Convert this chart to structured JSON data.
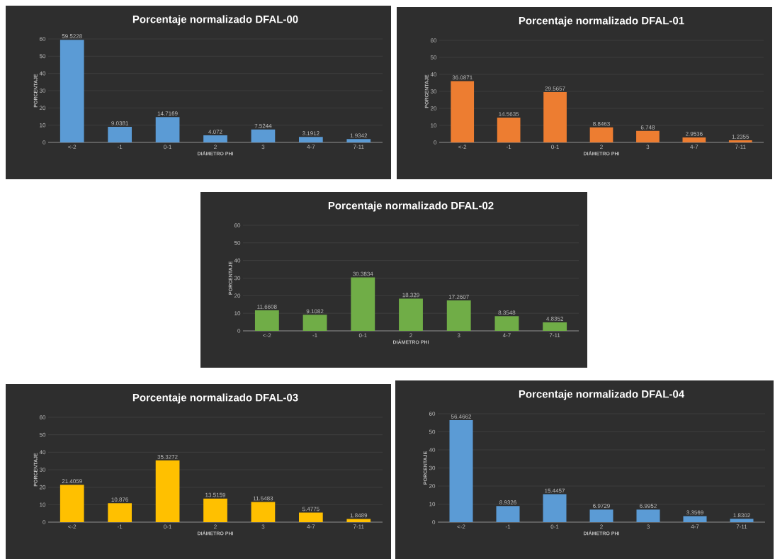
{
  "chart_data": [
    {
      "type": "bar",
      "title": "Porcentaje normalizado DFAL-00",
      "xlabel": "DIÁMETRO PHI",
      "ylabel": "PORCENTAJE",
      "categories": [
        "<-2",
        "-1",
        "0-1",
        "2",
        "3",
        "4-7",
        "7-11"
      ],
      "values": [
        59.5228,
        9.0381,
        14.7169,
        4.072,
        7.5244,
        3.1912,
        1.9342
      ],
      "color": "#5b9bd5",
      "ylim": [
        0,
        60
      ],
      "yticks": [
        0,
        10,
        20,
        30,
        40,
        50,
        60
      ],
      "grid": "y",
      "data_labels": true
    },
    {
      "type": "bar",
      "title": "Porcentaje normalizado DFAL-01",
      "xlabel": "DIÁMETRO PHI",
      "ylabel": "PORCENTAJE",
      "categories": [
        "<-2",
        "-1",
        "0-1",
        "2",
        "3",
        "4-7",
        "7-11"
      ],
      "values": [
        36.0871,
        14.5635,
        29.5657,
        8.8463,
        6.748,
        2.9536,
        1.2355
      ],
      "color": "#ed7d31",
      "ylim": [
        0,
        60
      ],
      "yticks": [
        0,
        10,
        20,
        30,
        40,
        50,
        60
      ],
      "grid": "y",
      "data_labels": true
    },
    {
      "type": "bar",
      "title": "Porcentaje normalizado DFAL-02",
      "xlabel": "DIÁMETRO PHI",
      "ylabel": "PORCENTAJE",
      "categories": [
        "<-2",
        "-1",
        "0-1",
        "2",
        "3",
        "4-7",
        "7-11"
      ],
      "values": [
        11.6608,
        9.1082,
        30.3834,
        18.329,
        17.2607,
        8.3548,
        4.8352
      ],
      "color": "#70ad47",
      "ylim": [
        0,
        60
      ],
      "yticks": [
        0,
        10,
        20,
        30,
        40,
        50,
        60
      ],
      "grid": "y",
      "data_labels": true
    },
    {
      "type": "bar",
      "title": "Porcentaje normalizado DFAL-03",
      "xlabel": "DIÁMETRO PHI",
      "ylabel": "PORCENTAJE",
      "categories": [
        "<-2",
        "-1",
        "0-1",
        "2",
        "3",
        "4-7",
        "7-11"
      ],
      "values": [
        21.4059,
        10.876,
        35.3272,
        13.5159,
        11.5483,
        5.4775,
        1.8489
      ],
      "color": "#ffc000",
      "ylim": [
        0,
        60
      ],
      "yticks": [
        0,
        10,
        20,
        30,
        40,
        50,
        60
      ],
      "grid": "y",
      "data_labels": true
    },
    {
      "type": "bar",
      "title": "Porcentaje normalizado DFAL-04",
      "xlabel": "DIÁMETRO PHI",
      "ylabel": "PORCENTAJE",
      "categories": [
        "<-2",
        "-1",
        "0-1",
        "2",
        "3",
        "4-7",
        "7-11"
      ],
      "values": [
        56.4662,
        8.9326,
        15.4457,
        6.9729,
        6.9952,
        3.3569,
        1.8302
      ],
      "color": "#5b9bd5",
      "ylim": [
        0,
        60
      ],
      "yticks": [
        0,
        10,
        20,
        30,
        40,
        50,
        60
      ],
      "grid": "y",
      "data_labels": true
    }
  ]
}
